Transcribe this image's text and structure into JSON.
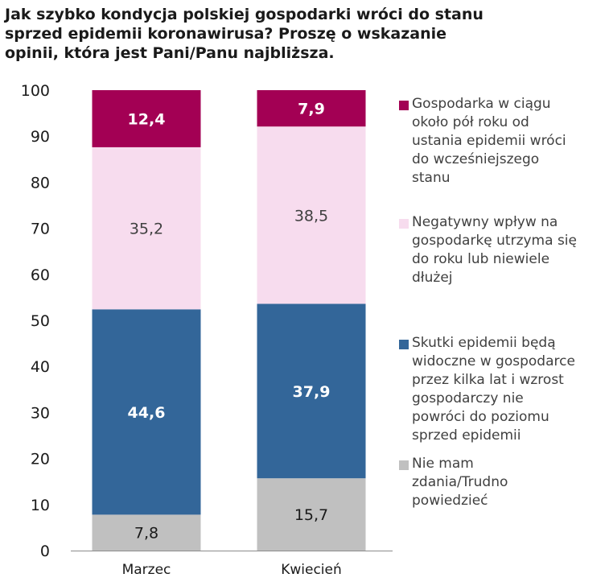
{
  "chart_data": {
    "type": "bar",
    "stacked": true,
    "title": "Jak szybko kondycja polskiej gospodarki wróci do stanu sprzed epidemii koronawirusa? Proszę o wskazanie opinii, która jest Pani/Panu najbliższa.",
    "categories": [
      "Marzec",
      "Kwiecień"
    ],
    "series": [
      {
        "name": "Nie mam zdania/Trudno powiedzieć",
        "values": [
          7.8,
          15.7
        ],
        "color": "#c0c0c0",
        "label_color": "#1a1a1a"
      },
      {
        "name": "Skutki epidemii będą widoczne w gospodarce przez kilka lat i wzrost gospodarczy nie powróci do poziomu sprzed epidemii",
        "values": [
          44.6,
          37.9
        ],
        "color": "#336699",
        "label_color": "#ffffff"
      },
      {
        "name": "Negatywny wpływ na gospodarkę utrzyma się do roku lub niewiele dłużej",
        "values": [
          35.2,
          38.5
        ],
        "color": "#f7dcee",
        "label_color": "#404040"
      },
      {
        "name": "Gospodarka w ciągu około pół roku od ustania epidemii wróci do wcześniejszego stanu",
        "values": [
          12.4,
          7.9
        ],
        "color": "#a30054",
        "label_color": "#ffffff"
      }
    ],
    "ylim": [
      0,
      100
    ],
    "yticks": [
      0,
      10,
      20,
      30,
      40,
      50,
      60,
      70,
      80,
      90,
      100
    ],
    "grid": false,
    "legend_position": "right"
  }
}
